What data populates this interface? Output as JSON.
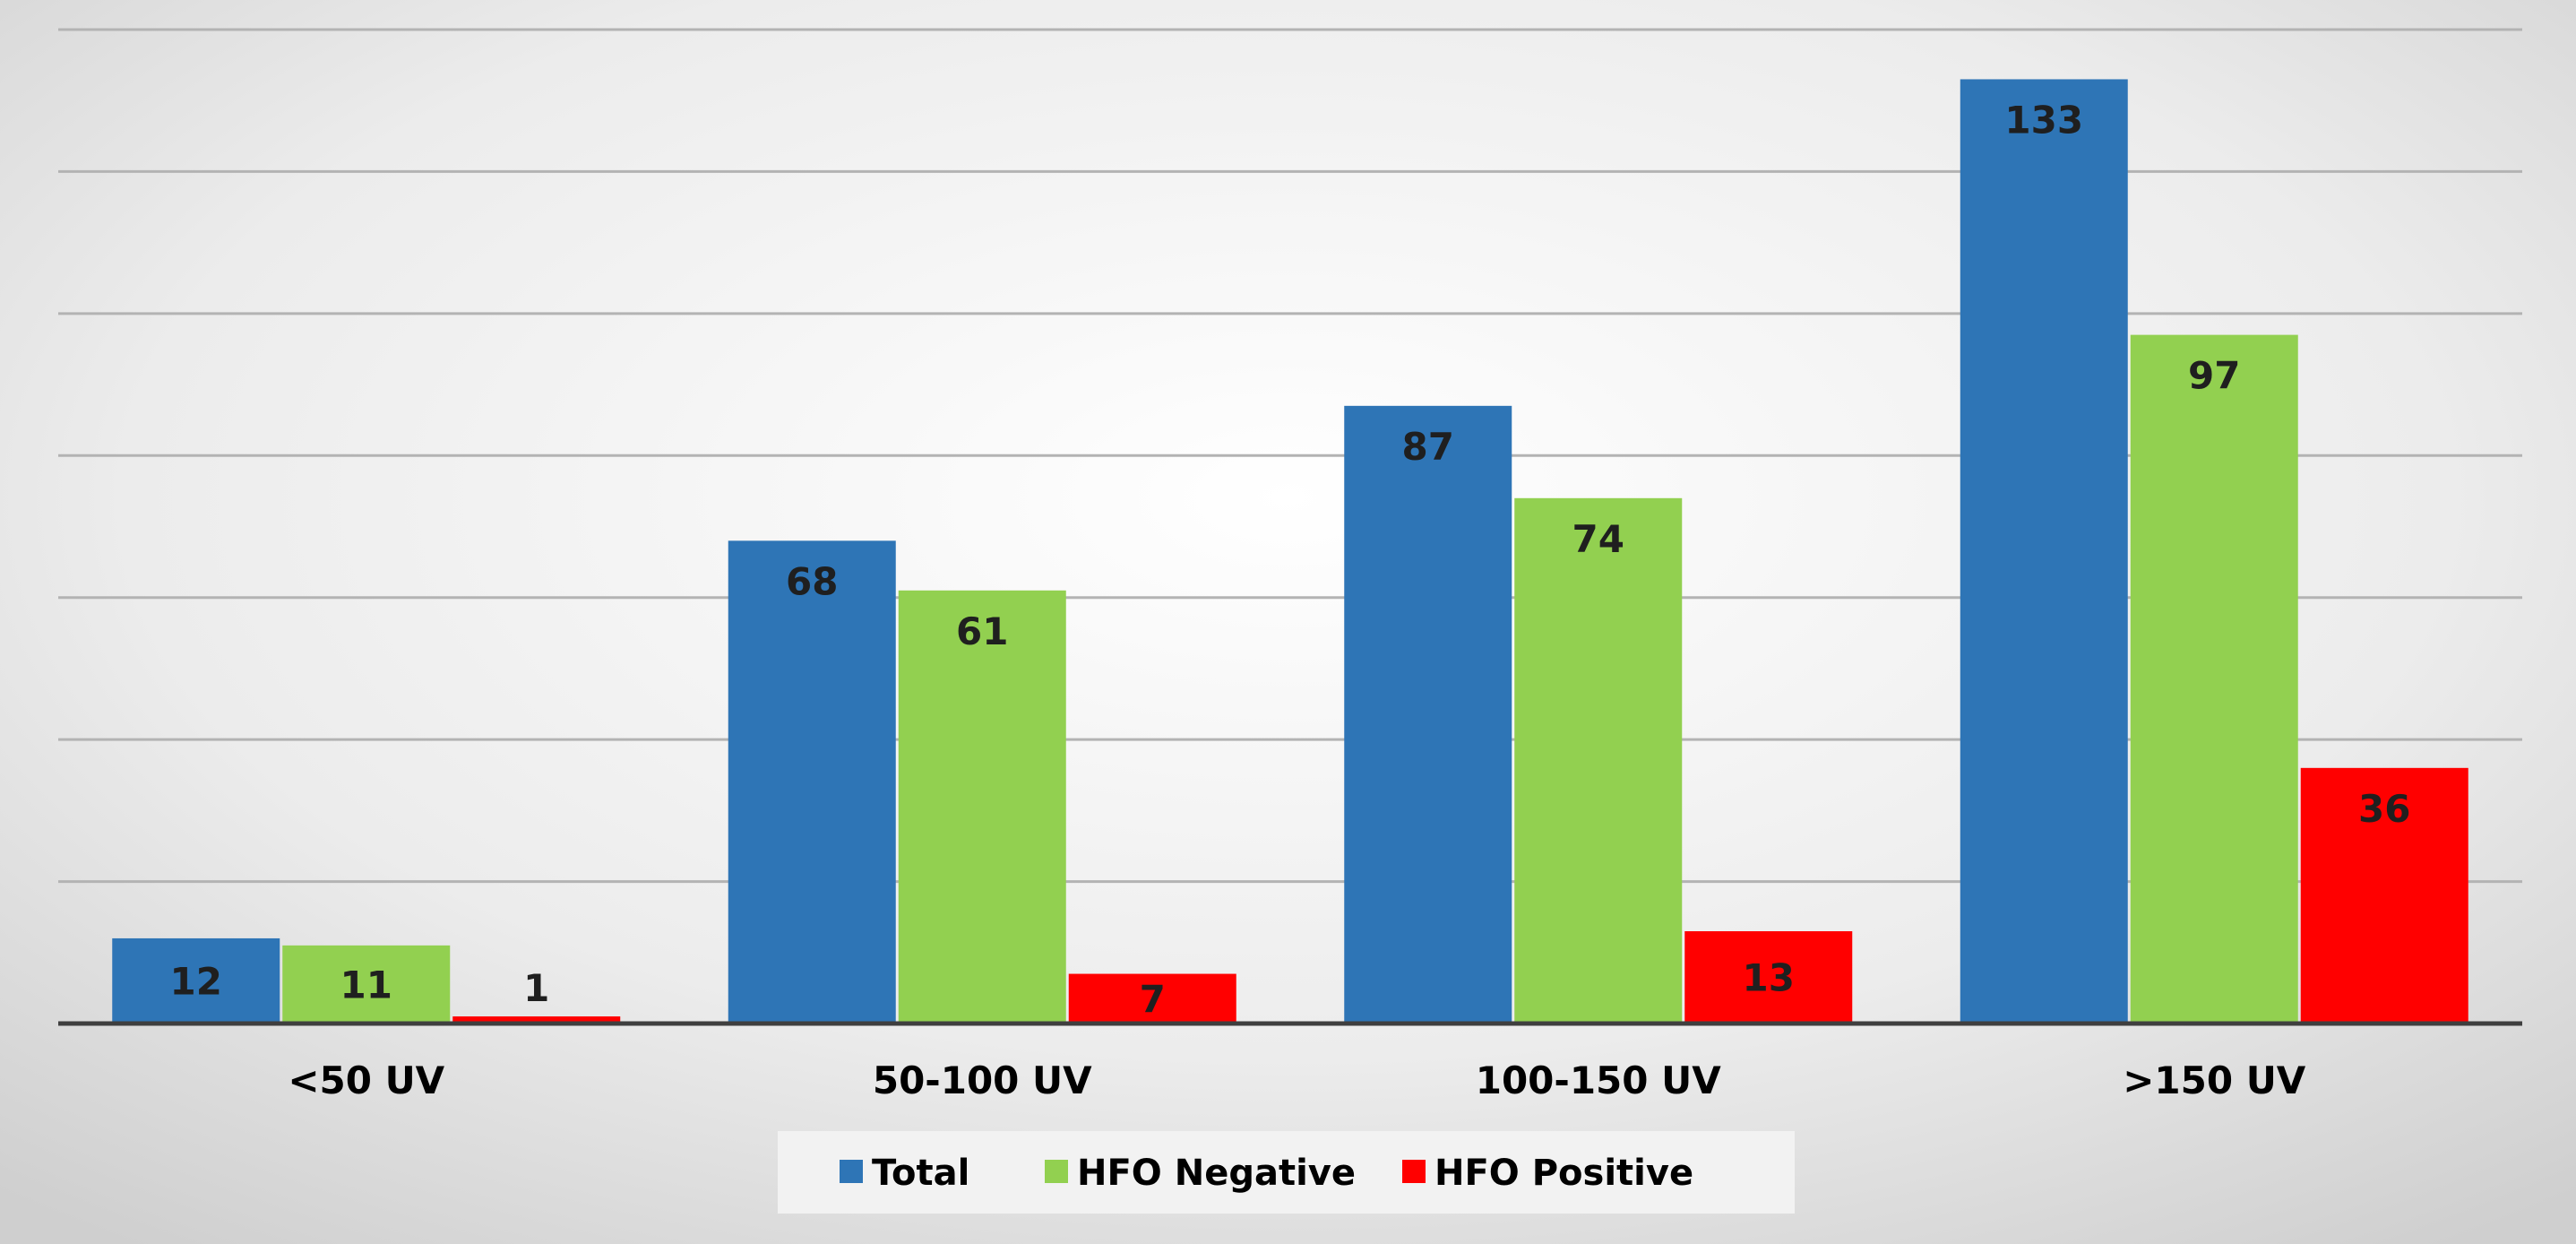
{
  "chart_data": {
    "type": "bar",
    "categories": [
      "<50 UV",
      "50-100 UV",
      "100-150 UV",
      ">150 UV"
    ],
    "series": [
      {
        "name": "Total",
        "color": "#2E75B6",
        "values": [
          12,
          68,
          87,
          133
        ]
      },
      {
        "name": "HFO Negative",
        "color": "#92D050",
        "values": [
          11,
          61,
          74,
          97
        ]
      },
      {
        "name": "HFO Positive",
        "color": "#FF0000",
        "values": [
          1,
          7,
          13,
          36
        ]
      }
    ],
    "ylim": [
      0,
      140
    ],
    "ytick_step": 20,
    "grid": true,
    "legend_position": "bottom-center",
    "data_labels": true
  }
}
